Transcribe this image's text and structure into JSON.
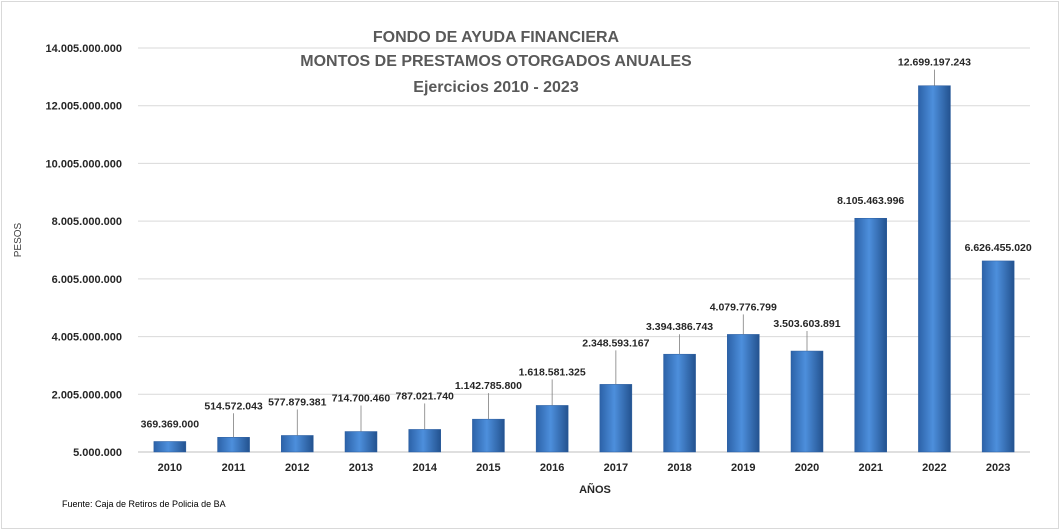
{
  "chart_data": {
    "type": "bar",
    "title": [
      "FONDO DE AYUDA FINANCIERA",
      "MONTOS DE PRESTAMOS OTORGADOS ANUALES",
      "Ejercicios 2010 - 2023"
    ],
    "xlabel": "AÑOS",
    "ylabel": "PESOS",
    "categories": [
      "2010",
      "2011",
      "2012",
      "2013",
      "2014",
      "2015",
      "2016",
      "2017",
      "2018",
      "2019",
      "2020",
      "2021",
      "2022",
      "2023"
    ],
    "values": [
      369369000,
      514572043,
      577879381,
      714700460,
      787021740,
      1142785800,
      1618581325,
      2348593167,
      3394386743,
      4079776799,
      3503603891,
      8105463996,
      12699197243,
      6626455020
    ],
    "data_labels": [
      "369.369.000",
      "514.572.043",
      "577.879.381",
      "714.700.460",
      "787.021.740",
      "1.142.785.800",
      "1.618.581.325",
      "2.348.593.167",
      "3.394.386.743",
      "4.079.776.799",
      "3.503.603.891",
      "8.105.463.996",
      "12.699.197.243",
      "6.626.455.020"
    ],
    "yticks": [
      5000000,
      2005000000,
      4005000000,
      6005000000,
      8005000000,
      10005000000,
      12005000000,
      14005000000
    ],
    "ytick_labels": [
      "5.000.000",
      "2.005.000.000",
      "4.005.000.000",
      "6.005.000.000",
      "8.005.000.000",
      "10.005.000.000",
      "12.005.000.000",
      "14.005.000.000"
    ],
    "ylim": [
      5000000,
      14005000000
    ],
    "grid": true,
    "bar_color": "#3a78c8",
    "source": "Fuente: Caja de Retiros de Policia de BA"
  }
}
